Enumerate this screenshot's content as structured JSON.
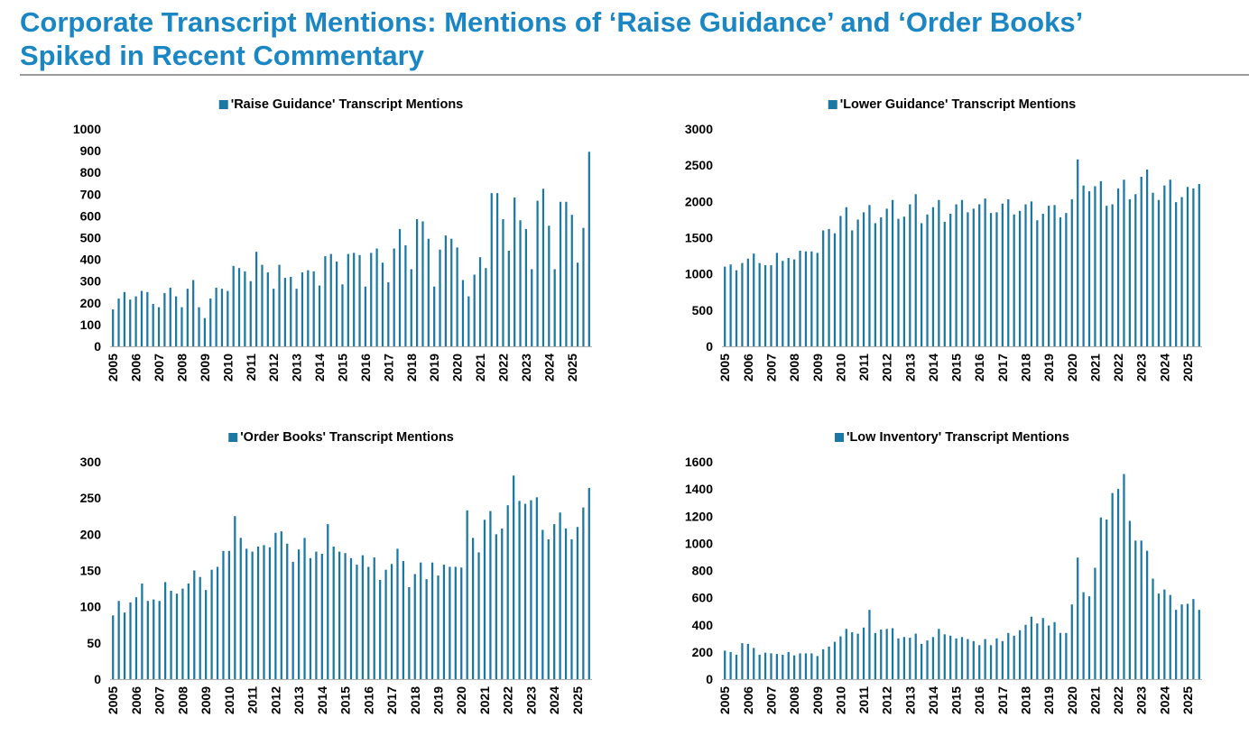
{
  "page": {
    "title_line1": "Corporate Transcript Mentions: Mentions of ‘Raise Guidance’ and ‘Order Books’",
    "title_line2": "Spiked in Recent Commentary",
    "title_color": "#1a87c4",
    "bar_color": "#1b78a4"
  },
  "chart_data": [
    {
      "type": "bar",
      "legend": "'Raise Guidance' Transcript Mentions",
      "ylim": [
        0,
        1000
      ],
      "yticks": [
        0,
        100,
        200,
        300,
        400,
        500,
        600,
        700,
        800,
        900,
        1000
      ],
      "xticks": [
        "2005",
        "2006",
        "2007",
        "2008",
        "2009",
        "2010",
        "2011",
        "2012",
        "2013",
        "2014",
        "2015",
        "2016",
        "2017",
        "2018",
        "2019",
        "2020",
        "2021",
        "2022",
        "2023",
        "2024",
        "2025"
      ],
      "series": [
        {
          "values": [
            170,
            220,
            250,
            215,
            230,
            255,
            250,
            195,
            180,
            245,
            270,
            230,
            180,
            265,
            305,
            180,
            130,
            220,
            270,
            265,
            255,
            370,
            360,
            345,
            300,
            435,
            375,
            340,
            265,
            375,
            315,
            320,
            265,
            340,
            350,
            345,
            280,
            415,
            425,
            390,
            285,
            425,
            430,
            420,
            275,
            430,
            450,
            385,
            295,
            450,
            540,
            465,
            355,
            585,
            575,
            495,
            275,
            445,
            510,
            495,
            455,
            305,
            230,
            330,
            410,
            360,
            705,
            705,
            585,
            440,
            685,
            580,
            540,
            355,
            670,
            725,
            555,
            355,
            665,
            665,
            605,
            385,
            545,
            895
          ]
        }
      ]
    },
    {
      "type": "bar",
      "legend": "'Lower Guidance' Transcript Mentions",
      "ylim": [
        0,
        3000
      ],
      "yticks": [
        0,
        500,
        1000,
        1500,
        2000,
        2500,
        3000
      ],
      "xticks": [
        "2005",
        "2006",
        "2007",
        "2008",
        "2009",
        "2010",
        "2011",
        "2012",
        "2013",
        "2014",
        "2015",
        "2016",
        "2017",
        "2018",
        "2019",
        "2020",
        "2021",
        "2022",
        "2023",
        "2024",
        "2025"
      ],
      "series": [
        {
          "values": [
            1100,
            1130,
            1050,
            1150,
            1210,
            1280,
            1150,
            1120,
            1120,
            1290,
            1180,
            1220,
            1200,
            1320,
            1310,
            1310,
            1290,
            1600,
            1620,
            1560,
            1800,
            1920,
            1600,
            1750,
            1850,
            1950,
            1700,
            1780,
            1900,
            2020,
            1760,
            1790,
            1960,
            2100,
            1700,
            1820,
            1920,
            2020,
            1720,
            1830,
            1960,
            2020,
            1850,
            1900,
            1960,
            2040,
            1840,
            1850,
            1970,
            2030,
            1820,
            1870,
            1960,
            2000,
            1740,
            1830,
            1940,
            1950,
            1780,
            1840,
            2030,
            2580,
            2220,
            2140,
            2210,
            2280,
            1940,
            1960,
            2180,
            2300,
            2030,
            2100,
            2340,
            2440,
            2120,
            2020,
            2220,
            2300,
            1990,
            2060,
            2200,
            2180,
            2240
          ]
        }
      ]
    },
    {
      "type": "bar",
      "legend": "'Order Books' Transcript Mentions",
      "ylim": [
        0,
        300
      ],
      "yticks": [
        0,
        50,
        100,
        150,
        200,
        250,
        300
      ],
      "xticks": [
        "2005",
        "2006",
        "2007",
        "2008",
        "2009",
        "2010",
        "2011",
        "2012",
        "2013",
        "2014",
        "2015",
        "2016",
        "2017",
        "2018",
        "2019",
        "2020",
        "2021",
        "2022",
        "2023",
        "2024",
        "2025"
      ],
      "series": [
        {
          "values": [
            88,
            108,
            92,
            106,
            113,
            132,
            108,
            110,
            108,
            134,
            122,
            118,
            125,
            132,
            150,
            141,
            123,
            151,
            155,
            177,
            177,
            225,
            195,
            180,
            176,
            183,
            185,
            182,
            202,
            204,
            187,
            162,
            179,
            195,
            167,
            176,
            173,
            214,
            183,
            176,
            174,
            167,
            158,
            171,
            155,
            168,
            137,
            151,
            159,
            180,
            163,
            127,
            145,
            161,
            138,
            161,
            143,
            158,
            155,
            155,
            154,
            233,
            195,
            175,
            220,
            232,
            200,
            208,
            240,
            281,
            246,
            242,
            247,
            251,
            206,
            193,
            214,
            230,
            208,
            193,
            210,
            237,
            264
          ]
        }
      ]
    },
    {
      "type": "bar",
      "legend": "'Low Inventory' Transcript Mentions",
      "ylim": [
        0,
        1600
      ],
      "yticks": [
        0,
        200,
        400,
        600,
        800,
        1000,
        1200,
        1400,
        1600
      ],
      "xticks": [
        "2005",
        "2006",
        "2007",
        "2008",
        "2009",
        "2010",
        "2011",
        "2012",
        "2013",
        "2014",
        "2015",
        "2016",
        "2017",
        "2018",
        "2019",
        "2020",
        "2021",
        "2022",
        "2023",
        "2024",
        "2025"
      ],
      "series": [
        {
          "values": [
            210,
            200,
            180,
            265,
            260,
            230,
            180,
            195,
            190,
            185,
            180,
            200,
            175,
            190,
            190,
            190,
            170,
            220,
            240,
            275,
            315,
            370,
            345,
            335,
            380,
            510,
            340,
            365,
            370,
            375,
            300,
            310,
            305,
            335,
            260,
            285,
            310,
            370,
            330,
            320,
            300,
            310,
            295,
            280,
            250,
            295,
            250,
            300,
            280,
            340,
            320,
            360,
            400,
            460,
            410,
            450,
            395,
            420,
            340,
            340,
            550,
            895,
            640,
            610,
            820,
            1190,
            1175,
            1370,
            1400,
            1510,
            1165,
            1020,
            1020,
            945,
            740,
            630,
            660,
            620,
            510,
            550,
            555,
            590,
            510
          ]
        }
      ]
    }
  ]
}
